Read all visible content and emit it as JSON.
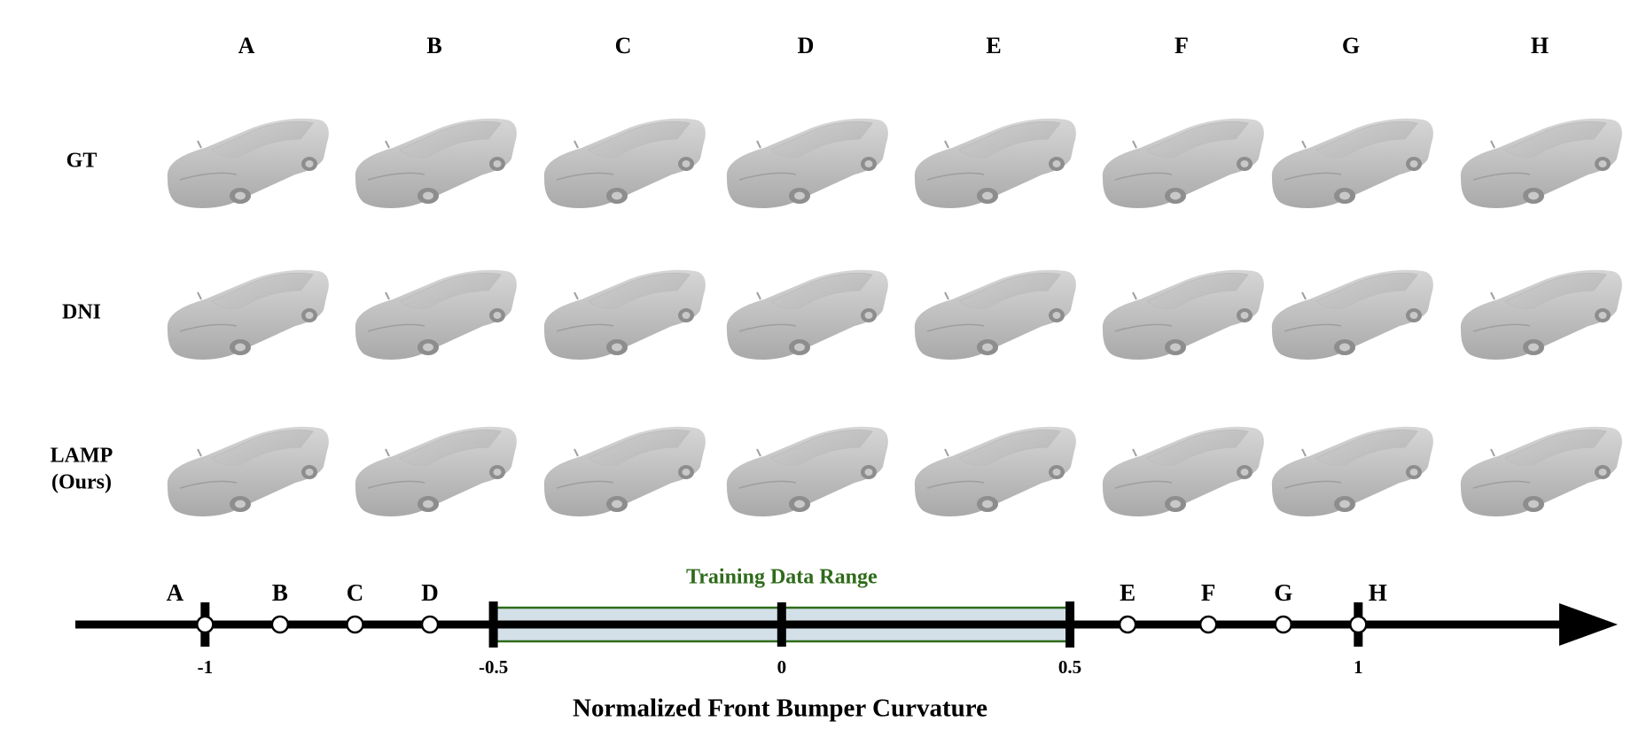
{
  "figure": {
    "columns": [
      "A",
      "B",
      "C",
      "D",
      "E",
      "F",
      "G",
      "H"
    ],
    "rows": [
      [
        "GT"
      ],
      [
        "DNI"
      ],
      [
        "LAMP",
        "(Ours)"
      ]
    ],
    "number_line": {
      "title": "Normalized Front Bumper Curvature",
      "xlim": [
        -1.225,
        1.45
      ],
      "ticks": [
        -1,
        -0.5,
        0,
        0.5,
        1
      ],
      "range": [
        -0.5,
        0.5
      ],
      "range_label": "Training Data Range",
      "range_color": "#2e6b1a",
      "points": [
        {
          "label": "A",
          "value": -1
        },
        {
          "label": "B",
          "value": -0.87
        },
        {
          "label": "C",
          "value": -0.74
        },
        {
          "label": "D",
          "value": -0.61
        },
        {
          "label": "E",
          "value": 0.6
        },
        {
          "label": "F",
          "value": 0.74
        },
        {
          "label": "G",
          "value": 0.87
        },
        {
          "label": "H",
          "value": 1
        }
      ]
    }
  }
}
